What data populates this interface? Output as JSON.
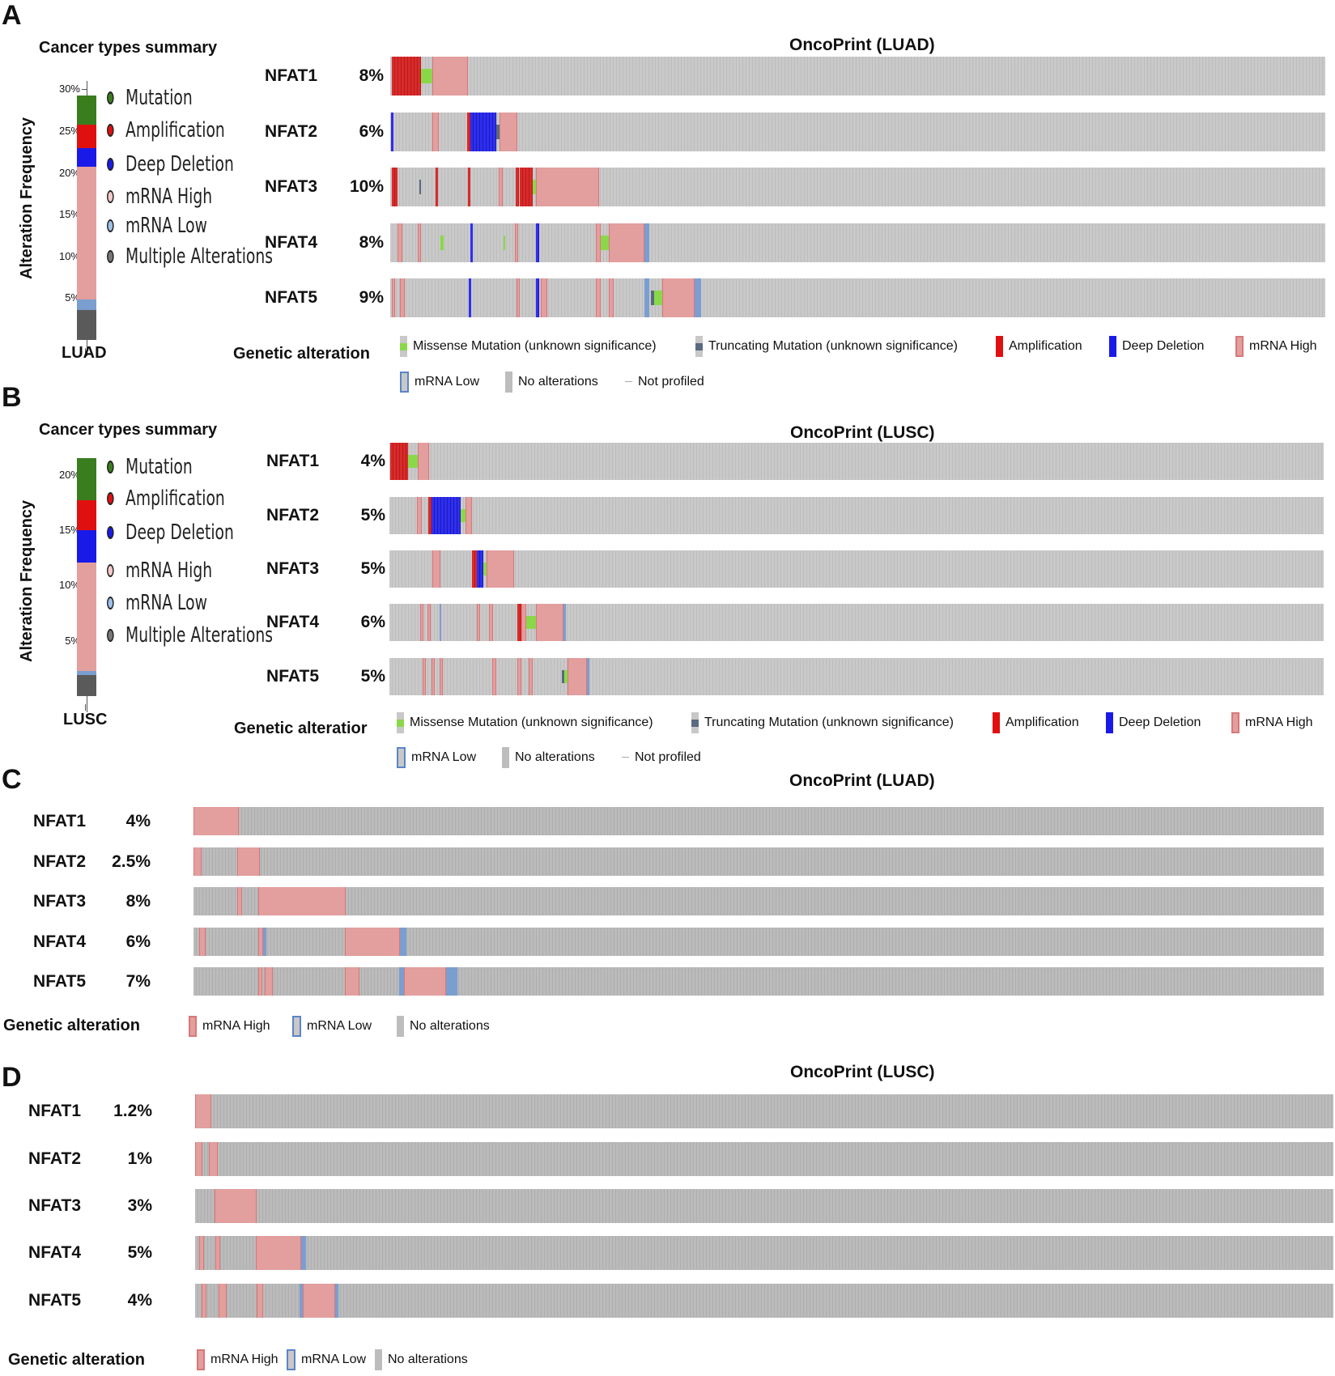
{
  "colors": {
    "mutation": "#3a7d1f",
    "amplification": "#e01010",
    "deep_deletion": "#1a1ae8",
    "mrna_high": "#e39e9e",
    "mrna_low": "#7a9ed0",
    "multiple": "#5a5a5a",
    "missense": "#8ad84a",
    "truncating": "#5a6a80",
    "no_alteration": "#c8c8c8"
  },
  "chart_data": [
    {
      "panel": "A",
      "type": "table",
      "title": "OncoPrint (LUAD)",
      "summary": {
        "title": "Cancer types summary",
        "ylabel": "Alteration Frequency",
        "yticks": [
          "30%",
          "25%",
          "20%",
          "15%",
          "10%",
          "5%"
        ],
        "ylim": [
          0,
          31
        ],
        "cancer": "LUAD",
        "stack": [
          {
            "type": "multiple",
            "value": 3.6
          },
          {
            "type": "mrna_low",
            "value": 1.2
          },
          {
            "type": "mrna_high",
            "value": 15.9
          },
          {
            "type": "deep_deletion",
            "value": 2.3
          },
          {
            "type": "amplification",
            "value": 2.8
          },
          {
            "type": "mutation",
            "value": 3.5
          }
        ],
        "legend": [
          "Mutation",
          "Amplification",
          "Deep Deletion",
          "mRNA High",
          "mRNA Low",
          "Multiple Alterations"
        ]
      },
      "genes": [
        {
          "name": "NFAT1",
          "pct": "8%"
        },
        {
          "name": "NFAT2",
          "pct": "6%"
        },
        {
          "name": "NFAT3",
          "pct": "10%"
        },
        {
          "name": "NFAT4",
          "pct": "8%"
        },
        {
          "name": "NFAT5",
          "pct": "9%"
        }
      ],
      "legend_title": "Genetic alteration",
      "legend": [
        "Missense Mutation (unknown significance)",
        "Truncating Mutation (unknown significance)",
        "Amplification",
        "Deep Deletion",
        "mRNA High",
        "mRNA Low",
        "No alterations",
        "Not profiled"
      ]
    },
    {
      "panel": "B",
      "type": "table",
      "title": "OncoPrint (LUSC)",
      "summary": {
        "title": "Cancer types summary",
        "ylabel": "Alteration Frequency",
        "yticks": [
          "20%",
          "15%",
          "10%",
          "5%"
        ],
        "ylim": [
          0,
          21.5
        ],
        "cancer": "LUSC",
        "stack": [
          {
            "type": "multiple",
            "value": 1.9
          },
          {
            "type": "mrna_low",
            "value": 0.4
          },
          {
            "type": "mrna_high",
            "value": 9.8
          },
          {
            "type": "deep_deletion",
            "value": 2.9
          },
          {
            "type": "amplification",
            "value": 2.7
          },
          {
            "type": "mutation",
            "value": 3.8
          }
        ],
        "legend": [
          "Mutation",
          "Amplification",
          "Deep Deletion",
          "mRNA High",
          "mRNA Low",
          "Multiple Alterations"
        ]
      },
      "genes": [
        {
          "name": "NFAT1",
          "pct": "4%"
        },
        {
          "name": "NFAT2",
          "pct": "5%"
        },
        {
          "name": "NFAT3",
          "pct": "5%"
        },
        {
          "name": "NFAT4",
          "pct": "6%"
        },
        {
          "name": "NFAT5",
          "pct": "5%"
        }
      ],
      "legend_title": "Genetic alteratior",
      "legend": [
        "Missense Mutation (unknown significance)",
        "Truncating Mutation (unknown significance)",
        "Amplification",
        "Deep Deletion",
        "mRNA High",
        "mRNA Low",
        "No alterations",
        "Not profiled"
      ]
    },
    {
      "panel": "C",
      "type": "table",
      "title": "OncoPrint (LUAD)",
      "genes": [
        {
          "name": "NFAT1",
          "pct": "4%"
        },
        {
          "name": "NFAT2",
          "pct": "2.5%"
        },
        {
          "name": "NFAT3",
          "pct": "8%"
        },
        {
          "name": "NFAT4",
          "pct": "6%"
        },
        {
          "name": "NFAT5",
          "pct": "7%"
        }
      ],
      "legend_title": "Genetic alteration",
      "legend": [
        "mRNA High",
        "mRNA Low",
        "No alterations"
      ]
    },
    {
      "panel": "D",
      "type": "table",
      "title": "OncoPrint (LUSC)",
      "genes": [
        {
          "name": "NFAT1",
          "pct": "1.2%"
        },
        {
          "name": "NFAT2",
          "pct": "1%"
        },
        {
          "name": "NFAT3",
          "pct": "3%"
        },
        {
          "name": "NFAT4",
          "pct": "5%"
        },
        {
          "name": "NFAT5",
          "pct": "4%"
        }
      ],
      "legend_title": "Genetic alteration",
      "legend": [
        "mRNA High",
        "mRNA Low",
        "No alterations"
      ]
    }
  ]
}
